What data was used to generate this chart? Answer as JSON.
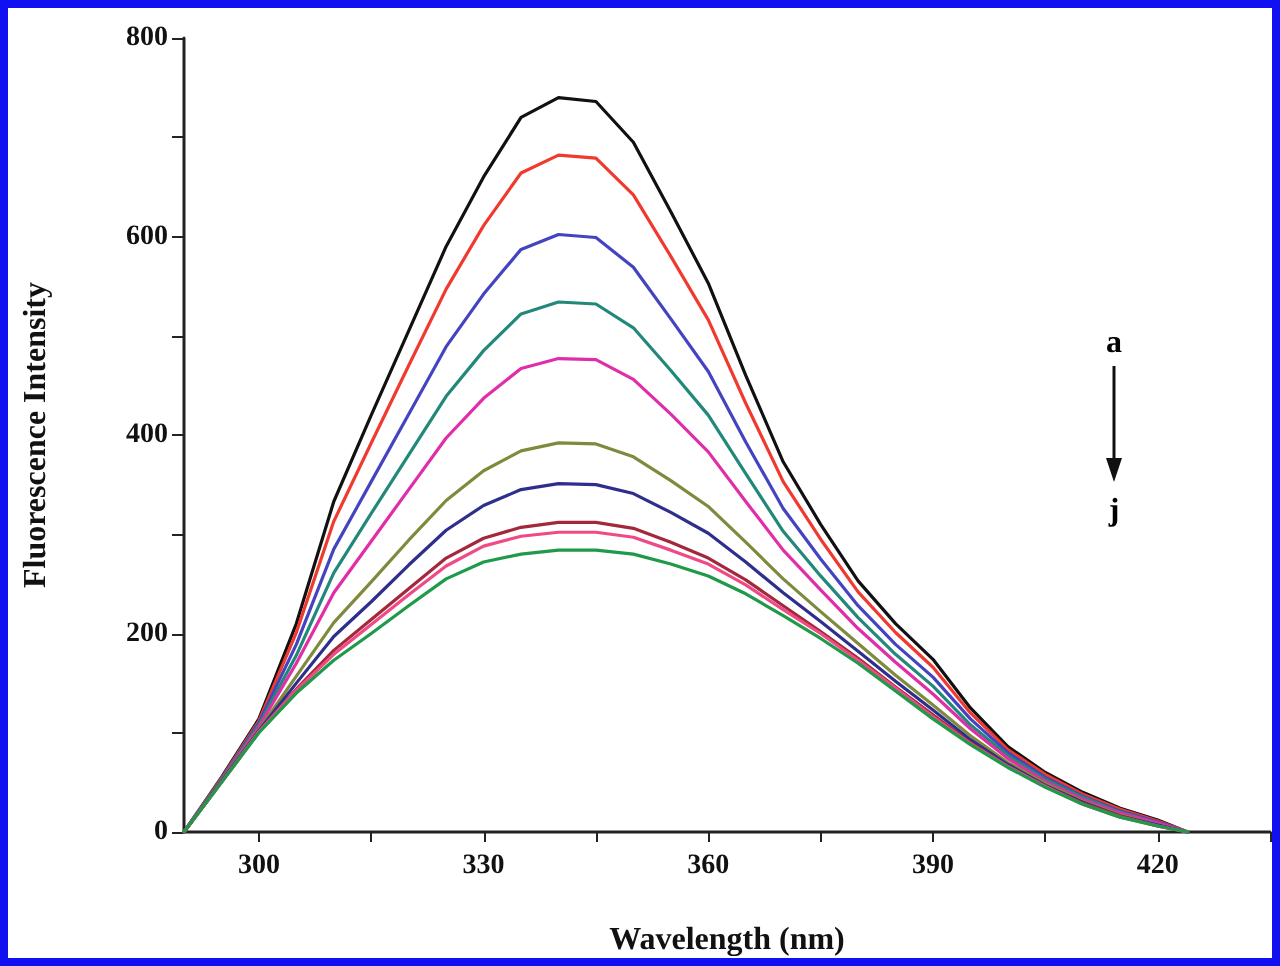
{
  "chart_data": {
    "type": "line",
    "xlabel": "Wavelength (nm)",
    "ylabel": "Fluorescence Intensity",
    "x": [
      290,
      295,
      300,
      305,
      310,
      315,
      320,
      325,
      330,
      335,
      340,
      345,
      350,
      355,
      360,
      365,
      370,
      375,
      380,
      385,
      390,
      395,
      400,
      405,
      410,
      415,
      420,
      424
    ],
    "series": [
      {
        "color": "#111111",
        "values": [
          0,
          55,
          114,
          210,
          333,
          420,
          505,
          590,
          660,
          720,
          740,
          736,
          695,
          625,
          553,
          460,
          373,
          310,
          253,
          210,
          174,
          125,
          86,
          60,
          40,
          24,
          12,
          0
        ]
      },
      {
        "color": "#f03a30",
        "values": [
          0,
          54,
          112,
          201,
          313,
          392,
          470,
          547,
          611,
          664,
          682,
          679,
          642,
          580,
          516,
          432,
          353,
          295,
          242,
          201,
          166,
          120,
          83,
          58,
          38,
          23,
          11,
          0
        ]
      },
      {
        "color": "#4444c0",
        "values": [
          0,
          53,
          110,
          189,
          285,
          353,
          421,
          489,
          542,
          587,
          602,
          599,
          569,
          517,
          464,
          393,
          326,
          275,
          228,
          189,
          156,
          114,
          80,
          55,
          36,
          21,
          10,
          0
        ]
      },
      {
        "color": "#22887a",
        "values": [
          0,
          53,
          108,
          178,
          261,
          321,
          380,
          439,
          485,
          522,
          534,
          532,
          508,
          465,
          420,
          361,
          303,
          258,
          216,
          179,
          147,
          108,
          77,
          53,
          35,
          20,
          9,
          0
        ]
      },
      {
        "color": "#e02ea8",
        "values": [
          0,
          52,
          106,
          170,
          241,
          293,
          345,
          397,
          437,
          467,
          477,
          476,
          456,
          421,
          383,
          333,
          284,
          244,
          205,
          171,
          139,
          104,
          74,
          51,
          33,
          19,
          9,
          0
        ]
      },
      {
        "color": "#7e8a3c",
        "values": [
          0,
          51,
          103,
          157,
          211,
          252,
          294,
          334,
          364,
          384,
          392,
          391,
          378,
          354,
          328,
          292,
          255,
          222,
          190,
          158,
          128,
          97,
          70,
          49,
          31,
          17,
          7,
          0
        ]
      },
      {
        "color": "#2e2e8c",
        "values": [
          0,
          51,
          102,
          150,
          197,
          232,
          269,
          304,
          329,
          345,
          351,
          350,
          341,
          322,
          301,
          272,
          241,
          212,
          182,
          152,
          123,
          93,
          68,
          47,
          30,
          16,
          7,
          0
        ]
      },
      {
        "color": "#a3283a",
        "values": [
          0,
          50,
          101,
          144,
          183,
          214,
          245,
          276,
          296,
          307,
          312,
          312,
          306,
          292,
          276,
          254,
          228,
          202,
          175,
          146,
          118,
          90,
          66,
          46,
          29,
          16,
          6,
          0
        ]
      },
      {
        "color": "#f04a86",
        "values": [
          0,
          50,
          101,
          143,
          179,
          209,
          239,
          268,
          288,
          298,
          302,
          302,
          297,
          284,
          270,
          249,
          224,
          200,
          173,
          145,
          116,
          89,
          66,
          46,
          28,
          15,
          6,
          0
        ]
      },
      {
        "color": "#1e9a4a",
        "values": [
          0,
          50,
          100,
          140,
          173,
          200,
          228,
          255,
          272,
          280,
          284,
          284,
          280,
          270,
          258,
          240,
          218,
          195,
          170,
          142,
          114,
          88,
          65,
          45,
          28,
          15,
          6,
          0
        ]
      }
    ],
    "xlim": [
      290,
      435
    ],
    "xticks": [
      300,
      {
        "value": 315,
        "label": null
      },
      330,
      {
        "value": 345,
        "label": null
      },
      360,
      {
        "value": 375,
        "label": null
      },
      390,
      {
        "value": 405,
        "label": null
      },
      420,
      {
        "value": 435,
        "label": null
      }
    ],
    "ylim": [
      0,
      800
    ],
    "yticks": [
      0,
      {
        "value": 100,
        "label": null
      },
      200,
      {
        "value": 300,
        "label": null
      },
      400,
      {
        "value": 500,
        "label": null
      },
      600,
      {
        "value": 700,
        "label": null
      },
      800
    ],
    "annotations": [
      "a",
      "j"
    ],
    "grid": false,
    "marker": "none",
    "line_style": "solid"
  }
}
